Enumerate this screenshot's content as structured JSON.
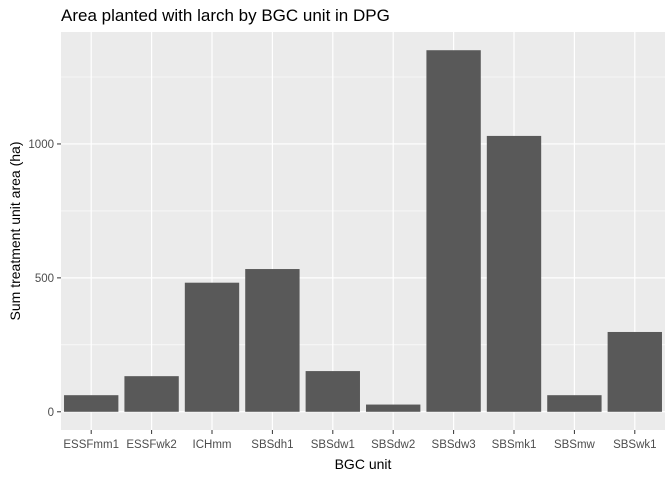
{
  "chart_data": {
    "type": "bar",
    "title": "Area planted with larch by BGC unit in DPG",
    "xlabel": "BGC unit",
    "ylabel": "Sum treatment unit area (ha)",
    "categories": [
      "ESSFmm1",
      "ESSFwk2",
      "ICHmm",
      "SBSdh1",
      "SBSdw1",
      "SBSdw2",
      "SBSdw3",
      "SBSmk1",
      "SBSmw",
      "SBSwk1"
    ],
    "values": [
      62,
      133,
      482,
      533,
      152,
      27,
      1350,
      1030,
      62,
      298
    ],
    "yticks": [
      0,
      500,
      1000
    ],
    "ytick_labels": [
      "0",
      "500",
      "1000"
    ],
    "ylim": [
      -68,
      1418
    ],
    "grid": true,
    "legend": "none",
    "colors": {
      "bar": "#595959",
      "panel": "#ebebeb",
      "grid_major": "#ffffff",
      "tick_text": "#4d4d4d"
    }
  }
}
